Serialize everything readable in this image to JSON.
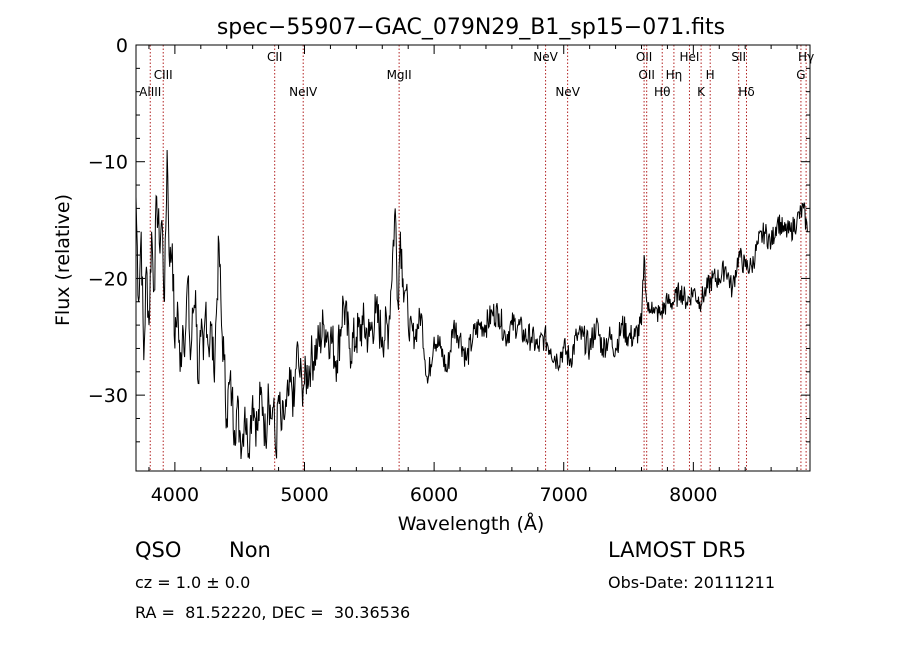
{
  "chart_data": {
    "type": "line",
    "title": "spec−55907−GAC_079N29_B1_sp15−071.fits",
    "xlabel": "Wavelength (Å)",
    "ylabel": "Flux (relative)",
    "xlim": [
      3700,
      8900
    ],
    "ylim": [
      -36.5,
      0
    ],
    "xticks": [
      4000,
      5000,
      6000,
      7000,
      8000
    ],
    "yticks": [
      0,
      -10,
      -20,
      -30
    ],
    "grid": false,
    "series": [
      {
        "x": [
          3700,
          3720,
          3740,
          3760,
          3780,
          3800,
          3820,
          3840,
          3860,
          3880,
          3900,
          3920,
          3940,
          3960,
          3980,
          4000,
          4020,
          4040,
          4060,
          4080,
          4100,
          4120,
          4140,
          4160,
          4180,
          4200,
          4220,
          4240,
          4260,
          4280,
          4300,
          4320,
          4340,
          4360,
          4380,
          4400,
          4420,
          4440,
          4460,
          4480,
          4500,
          4520,
          4540,
          4560,
          4580,
          4600,
          4620,
          4640,
          4660,
          4680,
          4700,
          4720,
          4740,
          4760,
          4780,
          4800,
          4820,
          4840,
          4860,
          4880,
          4900,
          4920,
          4940,
          4960,
          4980,
          5000,
          5050,
          5100,
          5150,
          5200,
          5250,
          5300,
          5350,
          5400,
          5450,
          5500,
          5550,
          5600,
          5650,
          5700,
          5720,
          5740,
          5760,
          5780,
          5800,
          5850,
          5900,
          5950,
          6000,
          6050,
          6100,
          6150,
          6200,
          6250,
          6300,
          6350,
          6400,
          6450,
          6500,
          6550,
          6600,
          6650,
          6700,
          6750,
          6800,
          6850,
          6900,
          6950,
          7000,
          7050,
          7100,
          7150,
          7200,
          7250,
          7300,
          7350,
          7400,
          7450,
          7500,
          7550,
          7600,
          7620,
          7640,
          7660,
          7680,
          7700,
          7750,
          7800,
          7850,
          7900,
          7950,
          8000,
          8050,
          8100,
          8150,
          8200,
          8250,
          8300,
          8350,
          8400,
          8450,
          8500,
          8550,
          8600,
          8650,
          8700,
          8750,
          8800,
          8850,
          8880
        ],
        "y": [
          -13,
          -22,
          -16,
          -27,
          -19,
          -24,
          -16,
          -21,
          -13,
          -17,
          -15,
          -22,
          -9,
          -19,
          -17,
          -26,
          -22,
          -28,
          -24,
          -25,
          -20,
          -27,
          -23,
          -21,
          -29,
          -25,
          -27,
          -22,
          -26,
          -24,
          -28,
          -23,
          -17,
          -24,
          -27,
          -32,
          -29,
          -30,
          -33,
          -31,
          -33,
          -34,
          -31,
          -34,
          -33,
          -30,
          -32,
          -33,
          -30,
          -31,
          -34,
          -29,
          -32,
          -31,
          -35,
          -30,
          -33,
          -32,
          -31,
          -30,
          -29,
          -31,
          -26,
          -28,
          -29,
          -29,
          -27,
          -26,
          -24,
          -25,
          -27,
          -22,
          -26,
          -25,
          -24,
          -25,
          -23,
          -25,
          -24,
          -14,
          -22,
          -16,
          -20,
          -21,
          -24,
          -25,
          -23,
          -29,
          -25,
          -26,
          -28,
          -24,
          -25,
          -27,
          -25,
          -24,
          -24,
          -23,
          -23,
          -25,
          -24,
          -24,
          -25,
          -25,
          -26,
          -25,
          -26,
          -27,
          -26,
          -27,
          -25,
          -25,
          -26,
          -24,
          -26,
          -25,
          -26,
          -24,
          -25,
          -25,
          -24,
          -18,
          -22,
          -23,
          -22,
          -23,
          -23,
          -22,
          -22,
          -21,
          -22,
          -21,
          -22,
          -21,
          -20,
          -20,
          -19,
          -21,
          -18,
          -19,
          -19,
          -17,
          -16,
          -17,
          -15,
          -16,
          -16,
          -15,
          -14,
          -16
        ]
      }
    ],
    "lines": [
      {
        "label": "AlIII",
        "x": 3810,
        "row": 3
      },
      {
        "label": "CIII",
        "x": 3910,
        "row": 2
      },
      {
        "label": "CII",
        "x": 4770,
        "row": 1
      },
      {
        "label": "NeIV",
        "x": 4990,
        "row": 3
      },
      {
        "label": "MgII",
        "x": 5730,
        "row": 2
      },
      {
        "label": "NeV",
        "x": 6860,
        "row": 1
      },
      {
        "label": "NeV",
        "x": 7030,
        "row": 3
      },
      {
        "label": "OII",
        "x": 7620,
        "row": 1
      },
      {
        "label": "OII",
        "x": 7640,
        "row": 2
      },
      {
        "label": "Hθ",
        "x": 7760,
        "row": 3
      },
      {
        "label": "Hη",
        "x": 7850,
        "row": 2
      },
      {
        "label": "HeI",
        "x": 7970,
        "row": 1
      },
      {
        "label": "K",
        "x": 8060,
        "row": 3
      },
      {
        "label": "H",
        "x": 8130,
        "row": 2
      },
      {
        "label": "SII",
        "x": 8350,
        "row": 1
      },
      {
        "label": "Hδ",
        "x": 8410,
        "row": 3
      },
      {
        "label": "G",
        "x": 8830,
        "row": 2
      },
      {
        "label": "Hγ",
        "x": 8870,
        "row": 1
      }
    ],
    "colors": {
      "spectrum": "#000000",
      "line_marker": "#b22222"
    }
  },
  "info": {
    "class": "QSO",
    "subclass": "Non",
    "cz": "cz = 1.0 ± 0.0",
    "radec": "RA =  81.52220, DEC =  30.36536",
    "survey": "LAMOST DR5",
    "obsdate": "Obs-Date: 20111211"
  }
}
